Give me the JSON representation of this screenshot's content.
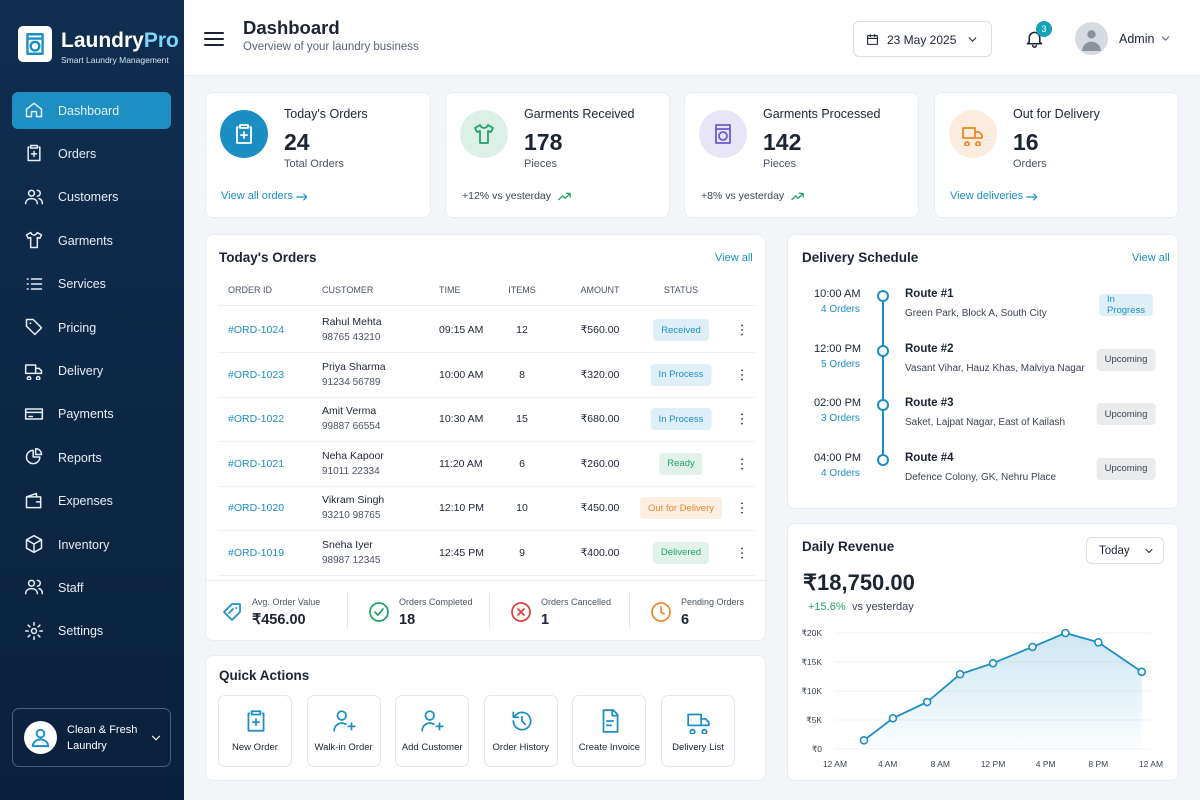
{
  "sidebar": {
    "brand": {
      "name": "Laundry",
      "name_accent": "Pro",
      "tagline": "Smart Laundry Management"
    },
    "nav": [
      {
        "label": "Dashboard",
        "active": true
      },
      {
        "label": "Orders"
      },
      {
        "label": "Customers"
      },
      {
        "label": "Garments"
      },
      {
        "label": "Services"
      },
      {
        "label": "Pricing"
      },
      {
        "label": "Delivery"
      },
      {
        "label": "Payments"
      },
      {
        "label": "Reports"
      },
      {
        "label": "Expenses"
      },
      {
        "label": "Inventory"
      },
      {
        "label": "Staff"
      },
      {
        "label": "Settings"
      }
    ],
    "account": "Clean & Fresh Laundry"
  },
  "header": {
    "title": "Dashboard",
    "subtitle": "Overview of your laundry business",
    "date": "23 May 2025",
    "notifications": 3,
    "user": "Admin"
  },
  "stats": [
    {
      "title": "Today's Orders",
      "value": 24,
      "unit": "Total Orders",
      "link": "View all orders",
      "color": "#1b8fc4"
    },
    {
      "title": "Garments Received",
      "value": 178,
      "unit": "Pieces",
      "trend": "+12% vs yesterday",
      "color": "#22a06b"
    },
    {
      "title": "Garments Processed",
      "value": 142,
      "unit": "Pieces",
      "trend": "+8% vs yesterday",
      "color": "#6d5bd0"
    },
    {
      "title": "Out for Delivery",
      "value": 16,
      "unit": "Orders",
      "link": "View deliveries",
      "color": "#e8892b"
    }
  ],
  "orders": {
    "title": "Today's Orders",
    "view_all": "View all",
    "columns": [
      "ORDER ID",
      "CUSTOMER",
      "TIME",
      "ITEMS",
      "AMOUNT",
      "STATUS"
    ],
    "rows": [
      {
        "id": "#ORD-1024",
        "customer": "Rahul Mehta",
        "phone": "98765 43210",
        "time": "09:15 AM",
        "items": 12,
        "amount": "₹560.00",
        "status": "Received",
        "status_color": "#1b8fc4"
      },
      {
        "id": "#ORD-1023",
        "customer": "Priya Sharma",
        "phone": "91234 56789",
        "time": "10:00 AM",
        "items": 8,
        "amount": "₹320.00",
        "status": "In Process",
        "status_color": "#1b8fc4"
      },
      {
        "id": "#ORD-1022",
        "customer": "Amit Verma",
        "phone": "99887 66554",
        "time": "10:30 AM",
        "items": 15,
        "amount": "₹680.00",
        "status": "In Process",
        "status_color": "#1b8fc4"
      },
      {
        "id": "#ORD-1021",
        "customer": "Neha Kapoor",
        "phone": "91011 22334",
        "time": "11:20 AM",
        "items": 6,
        "amount": "₹260.00",
        "status": "Ready",
        "status_color": "#22a06b"
      },
      {
        "id": "#ORD-1020",
        "customer": "Vikram Singh",
        "phone": "93210 98765",
        "time": "12:10 PM",
        "items": 10,
        "amount": "₹450.00",
        "status": "Out for Delivery",
        "status_color": "#e8892b"
      },
      {
        "id": "#ORD-1019",
        "customer": "Sneha Iyer",
        "phone": "98987 12345",
        "time": "12:45 PM",
        "items": 9,
        "amount": "₹400.00",
        "status": "Delivered",
        "status_color": "#22a06b"
      }
    ],
    "summary": [
      {
        "label": "Avg. Order Value",
        "value": "₹456.00",
        "color": "#1b8fc4"
      },
      {
        "label": "Orders Completed",
        "value": 18,
        "color": "#22a06b"
      },
      {
        "label": "Orders Cancelled",
        "value": 1,
        "color": "#e03c3c"
      },
      {
        "label": "Pending Orders",
        "value": 6,
        "color": "#e8892b"
      }
    ]
  },
  "quick_actions": {
    "title": "Quick Actions",
    "items": [
      "New Order",
      "Walk-in Order",
      "Add Customer",
      "Order History",
      "Create Invoice",
      "Delivery List"
    ]
  },
  "delivery": {
    "title": "Delivery Schedule",
    "view_all": "View all",
    "routes": [
      {
        "time": "10:00 AM",
        "orders": "4 Orders",
        "name": "Route #1",
        "areas": "Green Park, Block A, South City",
        "status": "In Progress",
        "status_color": "#1b8fc4"
      },
      {
        "time": "12:00 PM",
        "orders": "5 Orders",
        "name": "Route #2",
        "areas": "Vasant Vihar, Hauz Khas, Malviya Nagar",
        "status": "Upcoming",
        "status_color": "#6b7280"
      },
      {
        "time": "02:00 PM",
        "orders": "3 Orders",
        "name": "Route #3",
        "areas": "Saket, Lajpat Nagar, East of Kailash",
        "status": "Upcoming",
        "status_color": "#6b7280"
      },
      {
        "time": "04:00 PM",
        "orders": "4 Orders",
        "name": "Route #4",
        "areas": "Defence Colony, GK, Nehru Place",
        "status": "Upcoming",
        "status_color": "#6b7280"
      }
    ]
  },
  "revenue": {
    "title": "Daily Revenue",
    "period": "Today",
    "total": "₹18,750.00",
    "change": "+15.6%",
    "change_note": "vs yesterday",
    "chart_data": {
      "type": "line",
      "x": [
        2.2,
        4.4,
        7,
        9.5,
        12,
        15,
        17.5,
        20,
        23.3
      ],
      "values": [
        1500,
        5300,
        8100,
        12900,
        14800,
        17600,
        20000,
        18400,
        13300
      ],
      "color": "#1b8fc4",
      "xlim": [
        0,
        24
      ],
      "xticks": [
        {
          "value": 0,
          "label": "12 AM"
        },
        {
          "value": 4,
          "label": "4 AM"
        },
        {
          "value": 8,
          "label": "8 AM"
        },
        {
          "value": 12,
          "label": "12 PM"
        },
        {
          "value": 16,
          "label": "4 PM"
        },
        {
          "value": 20,
          "label": "8 PM"
        },
        {
          "value": 24,
          "label": "12 AM"
        }
      ],
      "ylim": [
        0,
        20000
      ],
      "yticks": [
        {
          "value": 0,
          "label": "₹0"
        },
        {
          "value": 5000,
          "label": "₹5K"
        },
        {
          "value": 10000,
          "label": "₹10K"
        },
        {
          "value": 15000,
          "label": "₹15K"
        },
        {
          "value": 20000,
          "label": "₹20K"
        }
      ],
      "grid": true
    }
  }
}
